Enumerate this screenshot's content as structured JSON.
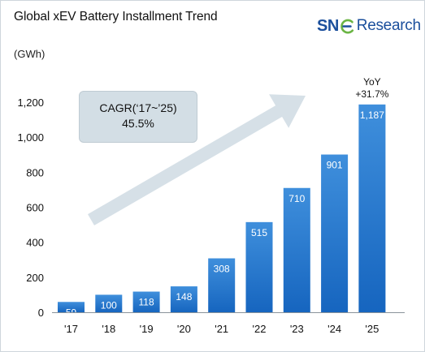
{
  "header": {
    "title": "Global xEV Battery Installment Trend",
    "unit": "(GWh)"
  },
  "logo": {
    "brand_prefix": "SN",
    "brand_e": "E",
    "brand_rest": "Research",
    "color": "#1b4f9c",
    "accent": "#6bb544"
  },
  "callout": {
    "line1": "CAGR(‘17~’25)",
    "line2": "45.5%"
  },
  "annotation": {
    "line1": "YoY",
    "line2": "+31.7%"
  },
  "colors": {
    "bar_top": "#3f8fdc",
    "bar_bottom": "#1665bf",
    "arrow": "#d6e0e7",
    "axis": "#8a939b",
    "text": "#111111",
    "bar_label": "#ffffff"
  },
  "chart_data": {
    "type": "bar",
    "title": "Global xEV Battery Installment Trend",
    "ylabel": "(GWh)",
    "xlabel": "",
    "categories": [
      "'17",
      "'18",
      "'19",
      "'20",
      "'21",
      "'22",
      "'23",
      "'24",
      "'25"
    ],
    "values": [
      59,
      100,
      118,
      148,
      308,
      515,
      710,
      901,
      1187
    ],
    "value_labels": [
      "59",
      "100",
      "118",
      "148",
      "308",
      "515",
      "710",
      "901",
      "1,187"
    ],
    "yticks": [
      0,
      200,
      400,
      600,
      800,
      1000,
      1200
    ],
    "ytick_labels": [
      "0",
      "200",
      "400",
      "600",
      "800",
      "1,000",
      "1,200"
    ],
    "ylim": [
      0,
      1200
    ],
    "grid": false,
    "legend": "none"
  }
}
